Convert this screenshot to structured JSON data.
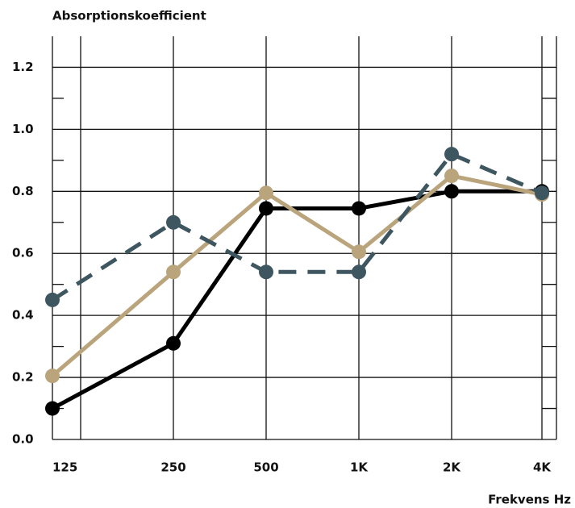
{
  "chart_data": {
    "type": "line",
    "y_label": "Absorptionskoefficient",
    "x_label": "Frekvens Hz",
    "categories": [
      "125",
      "250",
      "500",
      "1K",
      "2K",
      "4K"
    ],
    "series": [
      {
        "color": "#000000",
        "dashed": false,
        "values": [
          0.1,
          0.31,
          0.745,
          0.745,
          0.8,
          0.8
        ]
      },
      {
        "color": "#b9a47c",
        "dashed": false,
        "values": [
          0.205,
          0.54,
          0.795,
          0.605,
          0.85,
          0.79
        ]
      },
      {
        "color": "#3e5660",
        "dashed": true,
        "values": [
          0.45,
          0.7,
          0.54,
          0.54,
          0.92,
          0.795
        ]
      }
    ],
    "ylim": [
      0,
      1.3
    ],
    "yticks": [
      {
        "value": 0,
        "label": "0.0"
      },
      0.2,
      0.4,
      0.6,
      0.8,
      {
        "value": 1,
        "label": "1.0"
      },
      1.2
    ],
    "y_minor_ticks": [
      0.1,
      0.3,
      0.5,
      0.7,
      0.9,
      1.1
    ],
    "grid": true
  }
}
